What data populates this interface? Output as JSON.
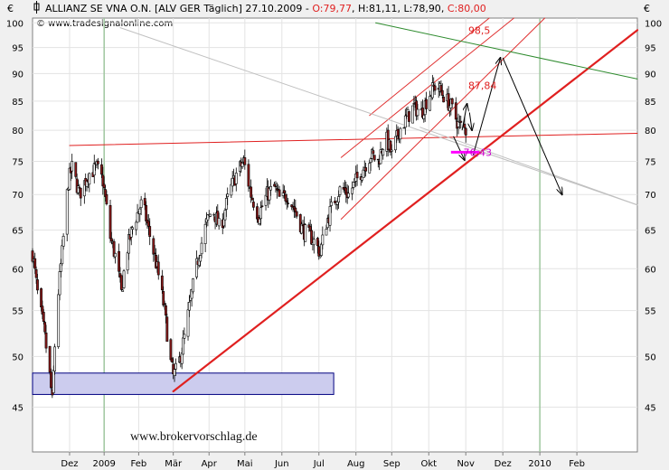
{
  "header": {
    "title_prefix": "ALLIANZ SE VNA O.N. [ALV GER  Täglich] 27.10.2009 - ",
    "open": "O:79,77",
    "high": "H:81,11",
    "low": "L:78,90",
    "close": "C:80,00",
    "source": "© www.tradesignalonline.com",
    "currency_left": "€",
    "currency_right": "€"
  },
  "watermark": "www.brokervorschlag.de",
  "colors": {
    "plot_bg": "#ffffff",
    "candle_up": "#ffffff",
    "candle_down": "#8b1a1a",
    "trend_red": "#e02020",
    "channel_red": "#e03030",
    "green_line": "#2e8b2e",
    "arrow": "#000000",
    "magenta": "#ff00ff",
    "box_fill": "#ccccee",
    "box_stroke": "#000080",
    "label_red": "#e02020",
    "label_magenta": "#cc00cc"
  },
  "chart_data": {
    "type": "candlestick",
    "scale": "log",
    "ylim": [
      41,
      101
    ],
    "y_ticks": [
      45,
      50,
      55,
      60,
      65,
      70,
      75,
      80,
      85,
      90,
      95,
      100
    ],
    "y_tick_labels": [
      "45",
      "50",
      "55",
      "60",
      "65",
      "70",
      "75",
      "80",
      "85",
      "90",
      "95",
      "100"
    ],
    "x_range": [
      "2008-11-10",
      "2010-03-15"
    ],
    "x_ticks": [
      {
        "label": "Dez",
        "date": "2008-12-10"
      },
      {
        "label": "2009",
        "date": "2009-01-07"
      },
      {
        "label": "Feb",
        "date": "2009-02-04"
      },
      {
        "label": "Mär",
        "date": "2009-03-04"
      },
      {
        "label": "Apr",
        "date": "2009-04-02"
      },
      {
        "label": "Mai",
        "date": "2009-05-01"
      },
      {
        "label": "Jun",
        "date": "2009-05-31"
      },
      {
        "label": "Jul",
        "date": "2009-06-30"
      },
      {
        "label": "Aug",
        "date": "2009-07-30"
      },
      {
        "label": "Sep",
        "date": "2009-08-28"
      },
      {
        "label": "Okt",
        "date": "2009-09-27"
      },
      {
        "label": "Nov",
        "date": "2009-10-27"
      },
      {
        "label": "Dez",
        "date": "2009-11-26"
      },
      {
        "label": "2010",
        "date": "2009-12-26"
      },
      {
        "label": "Feb",
        "date": "2010-01-25"
      }
    ],
    "price_path": [
      [
        "2008-11-10",
        62
      ],
      [
        "2008-11-14",
        57
      ],
      [
        "2008-11-19",
        53
      ],
      [
        "2008-11-24",
        48
      ],
      [
        "2008-11-26",
        45.5
      ],
      [
        "2008-11-29",
        54
      ],
      [
        "2008-12-04",
        62
      ],
      [
        "2008-12-09",
        72
      ],
      [
        "2008-12-12",
        74
      ],
      [
        "2008-12-18",
        70
      ],
      [
        "2008-12-25",
        73
      ],
      [
        "2009-01-01",
        74
      ],
      [
        "2009-01-06",
        72
      ],
      [
        "2009-01-12",
        64
      ],
      [
        "2009-01-17",
        61
      ],
      [
        "2009-01-21",
        57
      ],
      [
        "2009-01-25",
        62
      ],
      [
        "2009-01-31",
        66
      ],
      [
        "2009-02-07",
        69
      ],
      [
        "2009-02-12",
        65
      ],
      [
        "2009-02-19",
        60
      ],
      [
        "2009-02-25",
        55
      ],
      [
        "2009-03-01",
        50
      ],
      [
        "2009-03-04",
        48
      ],
      [
        "2009-03-08",
        49
      ],
      [
        "2009-03-13",
        52
      ],
      [
        "2009-03-19",
        57
      ],
      [
        "2009-03-25",
        62
      ],
      [
        "2009-03-31",
        66
      ],
      [
        "2009-04-05",
        68
      ],
      [
        "2009-04-11",
        65
      ],
      [
        "2009-04-18",
        70
      ],
      [
        "2009-04-24",
        73
      ],
      [
        "2009-04-30",
        75
      ],
      [
        "2009-05-06",
        70
      ],
      [
        "2009-05-12",
        67
      ],
      [
        "2009-05-19",
        70
      ],
      [
        "2009-05-25",
        71
      ],
      [
        "2009-05-30",
        69
      ],
      [
        "2009-06-04",
        70
      ],
      [
        "2009-06-10",
        68
      ],
      [
        "2009-06-17",
        65
      ],
      [
        "2009-06-24",
        64
      ],
      [
        "2009-06-28",
        63
      ],
      [
        "2009-07-01",
        62
      ],
      [
        "2009-07-06",
        66
      ],
      [
        "2009-07-12",
        69
      ],
      [
        "2009-07-18",
        71
      ],
      [
        "2009-07-24",
        70
      ],
      [
        "2009-07-30",
        72
      ],
      [
        "2009-08-05",
        74
      ],
      [
        "2009-08-11",
        76
      ],
      [
        "2009-08-17",
        75
      ],
      [
        "2009-08-23",
        79
      ],
      [
        "2009-08-28",
        76
      ],
      [
        "2009-09-03",
        80
      ],
      [
        "2009-09-09",
        82
      ],
      [
        "2009-09-15",
        84
      ],
      [
        "2009-09-21",
        83
      ],
      [
        "2009-09-27",
        86
      ],
      [
        "2009-10-03",
        88
      ],
      [
        "2009-10-09",
        86
      ],
      [
        "2009-10-15",
        84
      ],
      [
        "2009-10-21",
        81
      ],
      [
        "2009-10-27",
        80
      ]
    ],
    "lines": [
      {
        "name": "rising-trendline",
        "color": "trend_red",
        "width": 2.2,
        "points": [
          [
            "2009-03-04",
            46.5
          ],
          [
            "2010-03-15",
            98.5
          ]
        ]
      },
      {
        "name": "horizontal-resistance",
        "color": "trend_red",
        "width": 1,
        "points": [
          [
            "2008-12-10",
            77.5
          ],
          [
            "2010-03-15",
            79.5
          ]
        ]
      },
      {
        "name": "channel-lower",
        "color": "channel_red",
        "width": 1,
        "points": [
          [
            "2009-07-18",
            66.5
          ],
          [
            "2009-12-30",
            101
          ]
        ]
      },
      {
        "name": "channel-middle",
        "color": "channel_red",
        "width": 1,
        "points": [
          [
            "2009-07-18",
            75.6
          ],
          [
            "2009-12-05",
            101
          ]
        ]
      },
      {
        "name": "channel-upper",
        "color": "channel_red",
        "width": 1,
        "points": [
          [
            "2009-08-10",
            82.5
          ],
          [
            "2009-11-15",
            101
          ]
        ]
      },
      {
        "name": "green-resistance",
        "color": "green_line",
        "width": 1,
        "points": [
          [
            "2009-08-15",
            100
          ],
          [
            "2010-03-15",
            89
          ]
        ]
      },
      {
        "name": "grey-trend-upper",
        "color": "#c0c0c0",
        "width": 1,
        "points": [
          [
            "2009-01-20",
            99
          ],
          [
            "2010-03-15",
            68.5
          ]
        ]
      },
      {
        "name": "grey-trend-lower",
        "color": "#c0c0c0",
        "width": 1,
        "points": [
          [
            "2009-09-20",
            80.5
          ],
          [
            "2010-03-15",
            68.5
          ]
        ]
      }
    ],
    "arrows": [
      {
        "name": "arrow-down-to-support",
        "points": [
          [
            "2009-10-17",
            79
          ],
          [
            "2009-10-26",
            75.2
          ]
        ]
      },
      {
        "name": "arrow-up-small-1",
        "points": [
          [
            "2009-10-24",
            80
          ],
          [
            "2009-10-28",
            84.5
          ]
        ]
      },
      {
        "name": "arrow-down-small",
        "points": [
          [
            "2009-10-30",
            83
          ],
          [
            "2009-11-01",
            80
          ]
        ]
      },
      {
        "name": "arrow-up-large",
        "points": [
          [
            "2009-11-02",
            76
          ],
          [
            "2009-11-24",
            93
          ]
        ]
      },
      {
        "name": "arrow-down-large",
        "points": [
          [
            "2009-11-26",
            93
          ],
          [
            "2010-01-13",
            70
          ]
        ]
      }
    ],
    "support_line": {
      "from": "2009-10-15",
      "to": "2009-11-07",
      "value": 76.43
    },
    "support_box": {
      "from": "2008-11-10",
      "to": "2009-07-12",
      "low": 46.2,
      "high": 48.3
    },
    "annotations": [
      {
        "text": "98,5",
        "date": "2009-10-29",
        "value": 98.5,
        "color": "label_red"
      },
      {
        "text": "87,84",
        "date": "2009-10-29",
        "value": 87.84,
        "color": "label_red"
      },
      {
        "text": "76,43",
        "date": "2009-10-25",
        "value": 76.43,
        "color": "label_magenta"
      }
    ]
  }
}
